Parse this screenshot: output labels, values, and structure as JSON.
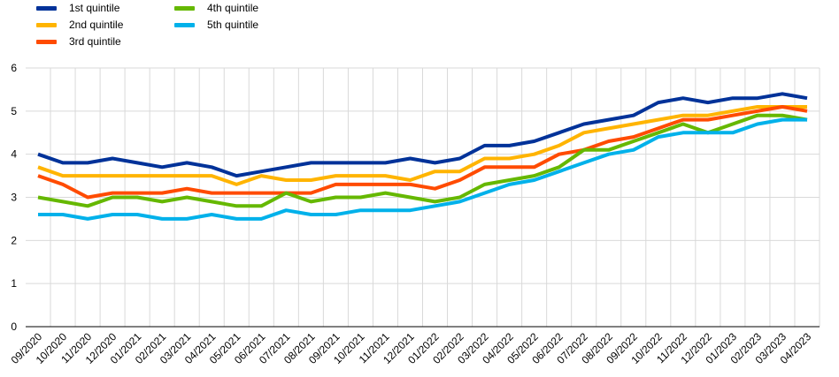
{
  "chart_data": {
    "type": "line",
    "title": "",
    "xlabel": "",
    "ylabel": "",
    "ylim": [
      0,
      6
    ],
    "y_ticks": [
      0,
      1,
      2,
      3,
      4,
      5,
      6
    ],
    "grid": true,
    "legend_position": "top-left",
    "categories": [
      "09/2020",
      "10/2020",
      "11/2020",
      "12/2020",
      "01/2021",
      "02/2021",
      "03/2021",
      "04/2021",
      "05/2021",
      "06/2021",
      "07/2021",
      "08/2021",
      "09/2021",
      "10/2021",
      "11/2021",
      "12/2021",
      "01/2022",
      "02/2022",
      "03/2022",
      "04/2022",
      "05/2022",
      "06/2022",
      "07/2022",
      "08/2022",
      "09/2022",
      "10/2022",
      "11/2022",
      "12/2022",
      "01/2023",
      "02/2023",
      "03/2023",
      "04/2023"
    ],
    "series": [
      {
        "name": "1st quintile",
        "color": "#003299",
        "values": [
          4.0,
          3.8,
          3.8,
          3.9,
          3.8,
          3.7,
          3.8,
          3.7,
          3.5,
          3.6,
          3.7,
          3.8,
          3.8,
          3.8,
          3.8,
          3.9,
          3.8,
          3.9,
          4.2,
          4.2,
          4.3,
          4.5,
          4.7,
          4.8,
          4.9,
          5.2,
          5.3,
          5.2,
          5.3,
          5.3,
          5.4,
          5.3
        ]
      },
      {
        "name": "2nd quintile",
        "color": "#FFB400",
        "values": [
          3.7,
          3.5,
          3.5,
          3.5,
          3.5,
          3.5,
          3.5,
          3.5,
          3.3,
          3.5,
          3.4,
          3.4,
          3.5,
          3.5,
          3.5,
          3.4,
          3.6,
          3.6,
          3.9,
          3.9,
          4.0,
          4.2,
          4.5,
          4.6,
          4.7,
          4.8,
          4.9,
          4.9,
          5.0,
          5.1,
          5.1,
          5.1
        ]
      },
      {
        "name": "3rd quintile",
        "color": "#FF4B00",
        "values": [
          3.5,
          3.3,
          3.0,
          3.1,
          3.1,
          3.1,
          3.2,
          3.1,
          3.1,
          3.1,
          3.1,
          3.1,
          3.3,
          3.3,
          3.3,
          3.3,
          3.2,
          3.4,
          3.7,
          3.7,
          3.7,
          4.0,
          4.1,
          4.3,
          4.4,
          4.6,
          4.8,
          4.8,
          4.9,
          5.0,
          5.1,
          5.0
        ]
      },
      {
        "name": "4th quintile",
        "color": "#65B800",
        "values": [
          3.0,
          2.9,
          2.8,
          3.0,
          3.0,
          2.9,
          3.0,
          2.9,
          2.8,
          2.8,
          3.1,
          2.9,
          3.0,
          3.0,
          3.1,
          3.0,
          2.9,
          3.0,
          3.3,
          3.4,
          3.5,
          3.7,
          4.1,
          4.1,
          4.3,
          4.5,
          4.7,
          4.5,
          4.7,
          4.9,
          4.9,
          4.8
        ]
      },
      {
        "name": "5th quintile",
        "color": "#00B1EA",
        "values": [
          2.6,
          2.6,
          2.5,
          2.6,
          2.6,
          2.5,
          2.5,
          2.6,
          2.5,
          2.5,
          2.7,
          2.6,
          2.6,
          2.7,
          2.7,
          2.7,
          2.8,
          2.9,
          3.1,
          3.3,
          3.4,
          3.6,
          3.8,
          4.0,
          4.1,
          4.4,
          4.5,
          4.5,
          4.5,
          4.7,
          4.8,
          4.8
        ]
      }
    ]
  }
}
